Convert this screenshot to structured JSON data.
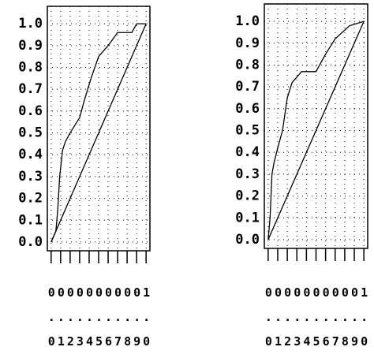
{
  "chart_data": [
    {
      "type": "line",
      "series": [
        {
          "x": [
            0,
            0.05,
            0.07,
            0.09,
            0.12,
            0.15,
            0.2,
            0.3,
            0.35,
            0.42,
            0.5,
            0.6,
            0.7,
            0.85,
            0.9,
            1.0
          ],
          "values": [
            0,
            0.05,
            0.15,
            0.3,
            0.42,
            0.46,
            0.5,
            0.57,
            0.65,
            0.75,
            0.85,
            0.9,
            0.96,
            0.96,
            1.0,
            1.0
          ],
          "color": "#000000"
        },
        {
          "x": [
            0,
            1.0
          ],
          "values": [
            0,
            1.0
          ],
          "color": "#000000"
        }
      ],
      "xlim": [
        -0.04,
        1.04
      ],
      "ylim": [
        -0.04,
        1.08
      ],
      "xticks": [
        {
          "value": 0,
          "label": "0.0"
        },
        {
          "value": 0.1,
          "label": "0.1"
        },
        {
          "value": 0.2,
          "label": "0.2"
        },
        {
          "value": 0.3,
          "label": "0.3"
        },
        {
          "value": 0.4,
          "label": "0.4"
        },
        {
          "value": 0.5,
          "label": "0.5"
        },
        {
          "value": 0.6,
          "label": "0.6"
        },
        {
          "value": 0.7,
          "label": "0.7"
        },
        {
          "value": 0.8,
          "label": "0.8"
        },
        {
          "value": 0.9,
          "label": "0.9"
        },
        {
          "value": 1.0,
          "label": "1.0"
        }
      ],
      "yticks": [
        {
          "value": 0,
          "label": "0.0"
        },
        {
          "value": 0.1,
          "label": "0.1"
        },
        {
          "value": 0.2,
          "label": "0.2"
        },
        {
          "value": 0.3,
          "label": "0.3"
        },
        {
          "value": 0.4,
          "label": "0.4"
        },
        {
          "value": 0.5,
          "label": "0.5"
        },
        {
          "value": 0.6,
          "label": "0.6"
        },
        {
          "value": 0.7,
          "label": "0.7"
        },
        {
          "value": 0.8,
          "label": "0.8"
        },
        {
          "value": 0.9,
          "label": "0.9"
        },
        {
          "value": 1.0,
          "label": "1.0"
        }
      ],
      "grid": true
    },
    {
      "type": "line",
      "series": [
        {
          "x": [
            0,
            0.02,
            0.04,
            0.06,
            0.1,
            0.15,
            0.2,
            0.25,
            0.35,
            0.5,
            0.6,
            0.7,
            0.85,
            1.0
          ],
          "values": [
            0,
            0.1,
            0.3,
            0.35,
            0.42,
            0.5,
            0.65,
            0.72,
            0.77,
            0.77,
            0.85,
            0.92,
            0.98,
            1.0
          ],
          "color": "#000000"
        },
        {
          "x": [
            0,
            1.0
          ],
          "values": [
            0,
            1.0
          ],
          "color": "#000000"
        }
      ],
      "xlim": [
        -0.04,
        1.04
      ],
      "ylim": [
        -0.04,
        1.08
      ],
      "xticks": [
        {
          "value": 0,
          "label": "0.0"
        },
        {
          "value": 0.1,
          "label": "0.1"
        },
        {
          "value": 0.2,
          "label": "0.2"
        },
        {
          "value": 0.3,
          "label": "0.3"
        },
        {
          "value": 0.4,
          "label": "0.4"
        },
        {
          "value": 0.5,
          "label": "0.5"
        },
        {
          "value": 0.6,
          "label": "0.6"
        },
        {
          "value": 0.7,
          "label": "0.7"
        },
        {
          "value": 0.8,
          "label": "0.8"
        },
        {
          "value": 0.9,
          "label": "0.9"
        },
        {
          "value": 1.0,
          "label": "1.0"
        }
      ],
      "yticks": [
        {
          "value": 0,
          "label": "0.0"
        },
        {
          "value": 0.1,
          "label": "0.1"
        },
        {
          "value": 0.2,
          "label": "0.2"
        },
        {
          "value": 0.3,
          "label": "0.3"
        },
        {
          "value": 0.4,
          "label": "0.4"
        },
        {
          "value": 0.5,
          "label": "0.5"
        },
        {
          "value": 0.6,
          "label": "0.6"
        },
        {
          "value": 0.7,
          "label": "0.7"
        },
        {
          "value": 0.8,
          "label": "0.8"
        },
        {
          "value": 0.9,
          "label": "0.9"
        },
        {
          "value": 1.0,
          "label": "1.0"
        }
      ],
      "grid": true
    }
  ]
}
